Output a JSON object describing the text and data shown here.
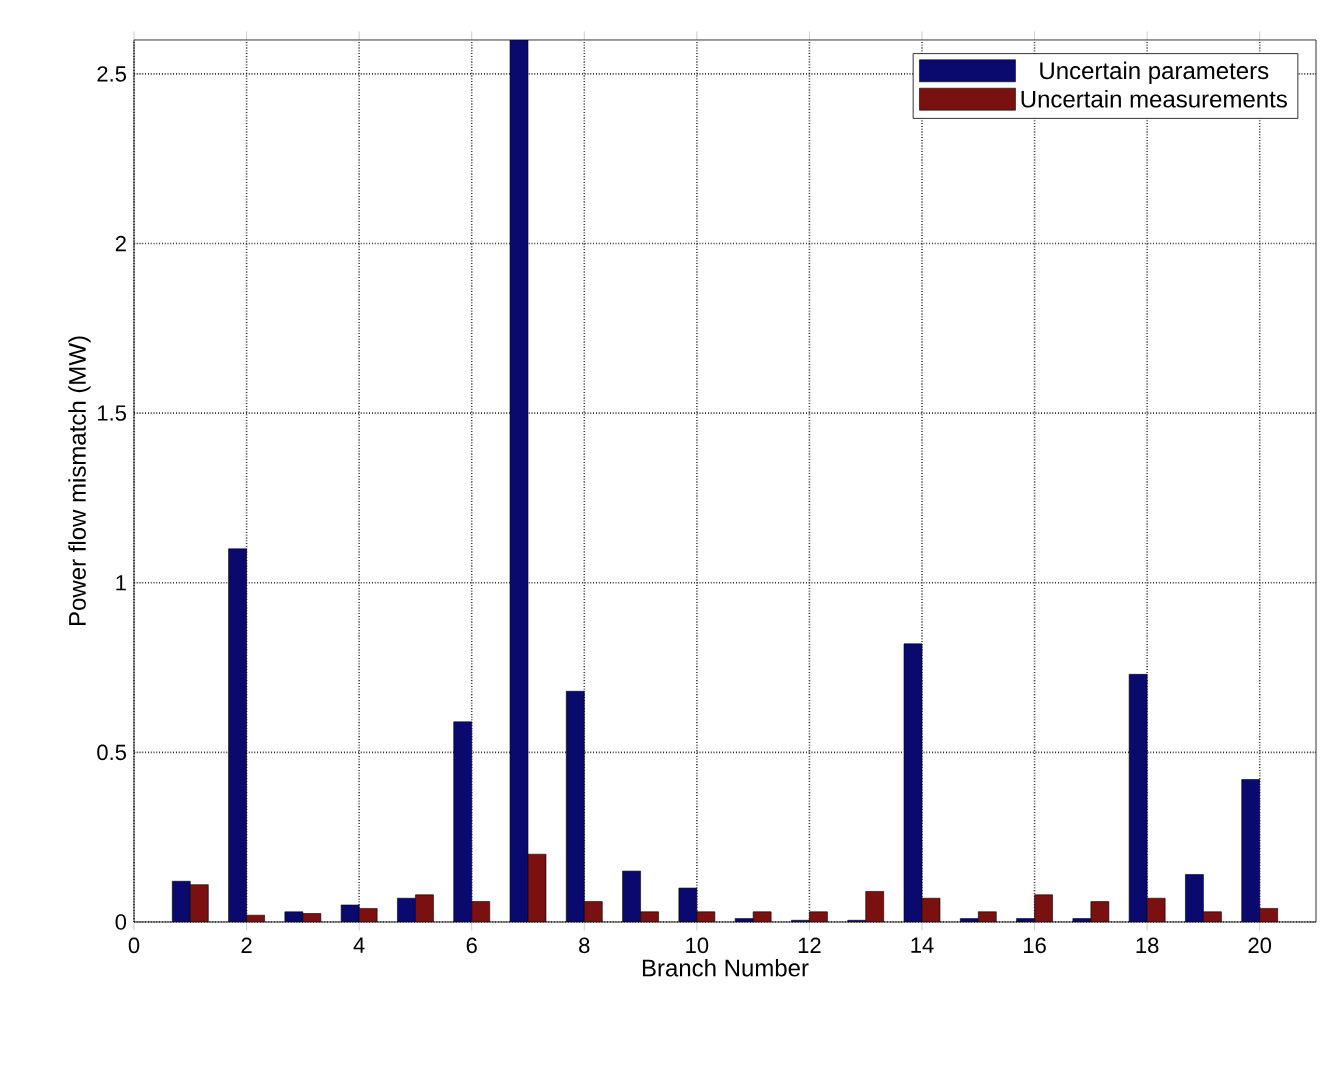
{
  "chart_data": {
    "type": "bar",
    "xlabel": "Branch Number",
    "ylabel": "Power flow mismatch (MW)",
    "x": [
      1,
      2,
      3,
      4,
      5,
      6,
      7,
      8,
      9,
      10,
      11,
      12,
      13,
      14,
      15,
      16,
      17,
      18,
      19,
      20
    ],
    "series": [
      {
        "name": "Uncertain parameters",
        "color": "#0a0a6e",
        "values": [
          0.12,
          1.1,
          0.03,
          0.05,
          0.07,
          0.59,
          2.6,
          0.68,
          0.15,
          0.1,
          0.01,
          0.005,
          0.005,
          0.82,
          0.01,
          0.01,
          0.01,
          0.73,
          0.14,
          0.42
        ]
      },
      {
        "name": "Uncertain measurements",
        "color": "#7a1010",
        "values": [
          0.11,
          0.02,
          0.025,
          0.04,
          0.08,
          0.06,
          0.2,
          0.06,
          0.03,
          0.03,
          0.03,
          0.03,
          0.09,
          0.07,
          0.03,
          0.08,
          0.06,
          0.07,
          0.03,
          0.04
        ]
      }
    ],
    "xlim": [
      0,
      21
    ],
    "xticks": [
      0,
      2,
      4,
      6,
      8,
      10,
      12,
      14,
      16,
      18,
      20
    ],
    "ylim": [
      0,
      2.6
    ],
    "yticks": [
      0,
      0.5,
      1,
      1.5,
      2,
      2.5
    ],
    "grid": true,
    "legend": "top right"
  }
}
